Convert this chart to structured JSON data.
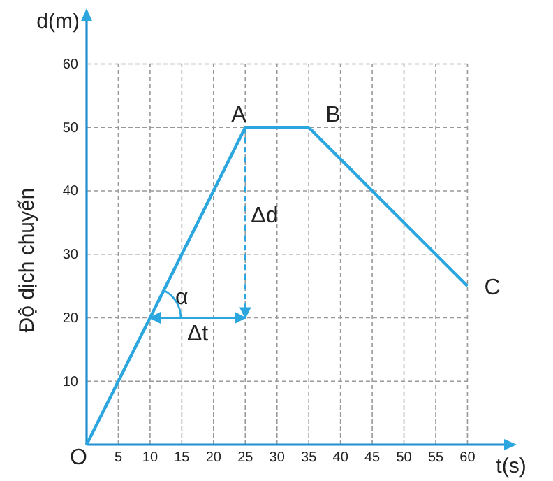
{
  "chart_data": {
    "type": "line",
    "xlabel": "t(s)",
    "ylabel": "d(m)",
    "y2label": "Độ dịch chuyển",
    "x": [
      0,
      25,
      35,
      60
    ],
    "series": [
      {
        "color": "#2ba6de",
        "values": [
          0,
          50,
          50,
          25
        ]
      }
    ],
    "xlim": [
      0,
      66
    ],
    "ylim": [
      0,
      67
    ],
    "xticks": [
      5,
      10,
      15,
      20,
      25,
      30,
      35,
      40,
      45,
      50,
      55,
      60
    ],
    "yticks": [
      10,
      20,
      30,
      40,
      50,
      60
    ],
    "grid": true,
    "marker": "none",
    "line_style": "solid",
    "annotations": [
      {
        "text": "O",
        "x": 0,
        "y": 0
      },
      {
        "text": "A",
        "x": 25,
        "y": 50
      },
      {
        "text": "B",
        "x": 35,
        "y": 50
      },
      {
        "text": "C",
        "x": 60,
        "y": 25
      },
      {
        "text": "α",
        "x": 10,
        "y": 20
      },
      "Δd",
      "Δt"
    ]
  }
}
